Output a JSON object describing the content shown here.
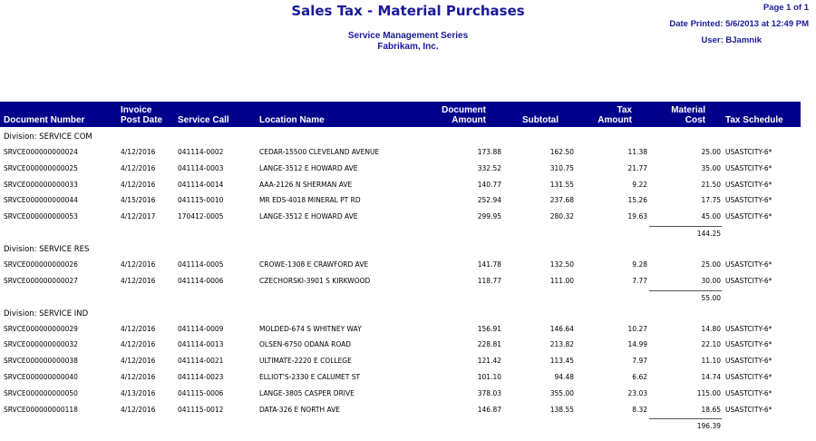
{
  "report": {
    "title": "Sales Tax - Material Purchases",
    "series": "Service Management Series",
    "company": "Fabrikam, Inc.",
    "page": "Page 1 of 1",
    "date_printed": "Date Printed: 5/6/2013 at 12:49 PM",
    "user": "User: BJamnik"
  },
  "columns": {
    "doc_number": "Document Number",
    "invoice_l1": "Invoice",
    "invoice_l2": "Post Date",
    "service_call": "Service Call",
    "location": "Location Name",
    "doc_amount_l1": "Document",
    "doc_amount_l2": "Amount",
    "subtotal": "Subtotal",
    "tax_l1": "Tax",
    "tax_l2": "Amount",
    "cost_l1": "Material",
    "cost_l2": "Cost",
    "schedule": "Tax Schedule"
  },
  "divisions": [
    {
      "label": "Division: SERVICE COM",
      "total": "144.25",
      "rows": [
        [
          "SRVCE000000000024",
          "4/12/2016",
          "041114-0002",
          "CEDAR-15500 CLEVELAND AVENUE",
          "173.88",
          "162.50",
          "11.38",
          "25.00",
          "USASTCITY-6*"
        ],
        [
          "SRVCE000000000025",
          "4/12/2016",
          "041114-0003",
          "LANGE-3512 E HOWARD AVE",
          "332.52",
          "310.75",
          "21.77",
          "35.00",
          "USASTCITY-6*"
        ],
        [
          "SRVCE000000000033",
          "4/12/2016",
          "041114-0014",
          "AAA-2126 N SHERMAN AVE",
          "140.77",
          "131.55",
          "9.22",
          "21.50",
          "USASTCITY-6*"
        ],
        [
          "SRVCE000000000044",
          "4/15/2016",
          "041115-0010",
          "MR EDS-4018 MINERAL PT RD",
          "252.94",
          "237.68",
          "15.26",
          "17.75",
          "USASTCITY-6*"
        ],
        [
          "SRVCE000000000053",
          "4/12/2017",
          "170412-0005",
          "LANGE-3512 E HOWARD AVE",
          "299.95",
          "280.32",
          "19.63",
          "45.00",
          "USASTCITY-6*"
        ]
      ]
    },
    {
      "label": "Division: SERVICE RES",
      "total": "55.00",
      "rows": [
        [
          "SRVCE000000000026",
          "4/12/2016",
          "041114-0005",
          "CROWE-1308 E CRAWFORD AVE",
          "141.78",
          "132.50",
          "9.28",
          "25.00",
          "USASTCITY-6*"
        ],
        [
          "SRVCE000000000027",
          "4/12/2016",
          "041114-0006",
          "CZECHORSKI-3901 S KIRKWOOD",
          "118.77",
          "111.00",
          "7.77",
          "30.00",
          "USASTCITY-6*"
        ]
      ]
    },
    {
      "label": "Division: SERVICE IND",
      "total": "196.39",
      "rows": [
        [
          "SRVCE000000000029",
          "4/12/2016",
          "041114-0009",
          "MOLDED-674 S WHITNEY WAY",
          "156.91",
          "146.64",
          "10.27",
          "14.80",
          "USASTCITY-6*"
        ],
        [
          "SRVCE000000000032",
          "4/12/2016",
          "041114-0013",
          "OLSEN-6750 ODANA ROAD",
          "228.81",
          "213.82",
          "14.99",
          "22.10",
          "USASTCITY-6*"
        ],
        [
          "SRVCE000000000038",
          "4/12/2016",
          "041114-0021",
          "ULTIMATE-2220 E COLLEGE",
          "121.42",
          "113.45",
          "7.97",
          "11.10",
          "USASTCITY-6*"
        ],
        [
          "SRVCE000000000040",
          "4/12/2016",
          "041114-0023",
          "ELLIOT'S-2330 E CALUMET ST",
          "101.10",
          "94.48",
          "6.62",
          "14.74",
          "USASTCITY-6*"
        ],
        [
          "SRVCE000000000050",
          "4/13/2016",
          "041115-0006",
          "LANGE-3805 CASPER DRIVE",
          "378.03",
          "355.00",
          "23.03",
          "115.00",
          "USASTCITY-6*"
        ],
        [
          "SRVCE000000000118",
          "4/12/2016",
          "041115-0012",
          "DATA-326 E NORTH AVE",
          "146.87",
          "138.55",
          "8.32",
          "18.65",
          "USASTCITY-6*"
        ]
      ]
    }
  ]
}
